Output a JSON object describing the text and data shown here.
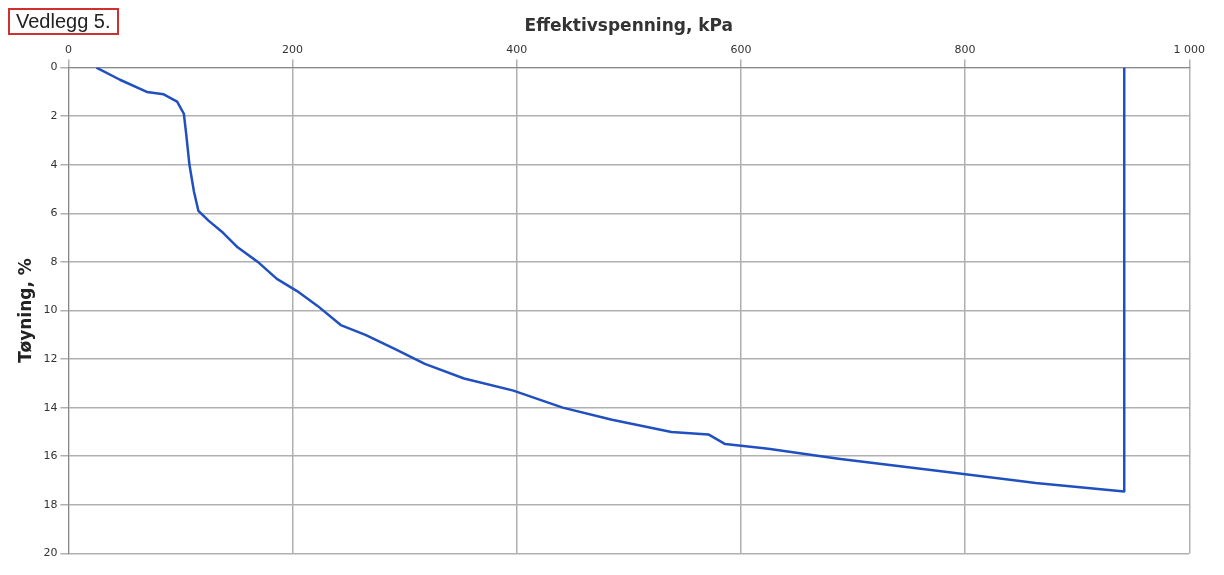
{
  "chart_data": {
    "type": "line",
    "xlabel": "Effektivspenning, kPa",
    "ylabel": "Tøyning, %",
    "annotations": [
      "Vedlegg 5."
    ],
    "xlim": [
      0,
      1000
    ],
    "xticks": [
      0,
      200,
      400,
      600,
      800,
      {
        "value": 1000,
        "label": "1 000"
      }
    ],
    "ylim": [
      20,
      0
    ],
    "yticks": [
      0,
      2,
      4,
      6,
      8,
      10,
      12,
      14,
      16,
      18,
      20
    ],
    "grid": true,
    "legend": false,
    "marker": "none",
    "line_style": "solid",
    "series": [
      {
        "color": "#2050c0",
        "x": [
          25,
          46,
          70,
          85,
          97,
          103,
          105,
          108,
          112,
          116,
          125,
          138,
          151,
          169,
          186,
          204,
          222,
          243,
          265,
          292,
          318,
          353,
          397,
          441,
          485,
          538,
          571,
          586,
          626,
          687,
          775,
          863,
          942,
          942
        ],
        "values": [
          0,
          0.5,
          1,
          1.1,
          1.4,
          1.9,
          2.7,
          4,
          5.1,
          5.9,
          6.3,
          6.8,
          7.4,
          8,
          8.7,
          9.2,
          9.8,
          10.6,
          11,
          11.6,
          12.2,
          12.8,
          13.3,
          14,
          14.5,
          15,
          15.1,
          15.5,
          15.7,
          16.1,
          16.6,
          17.1,
          17.45,
          0
        ]
      }
    ]
  }
}
